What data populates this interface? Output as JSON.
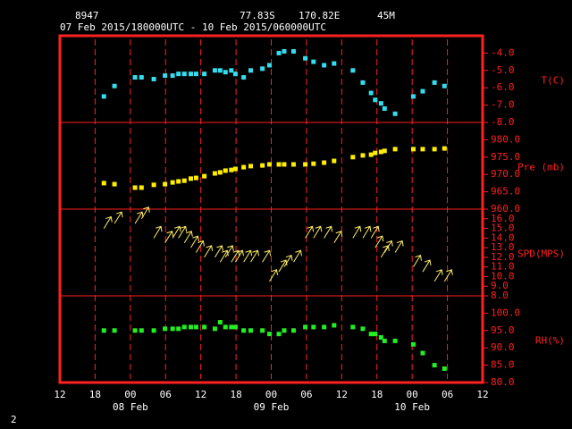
{
  "header": {
    "station": "8947",
    "lat": "77.83S",
    "lon": "170.82E",
    "elev": "45M",
    "period": "07 Feb 2015/180000UTC - 10 Feb 2015/060000UTC"
  },
  "page_number": "2",
  "chart_data": {
    "type": "meteogram",
    "xlim": [
      0,
      72
    ],
    "xticks": [
      {
        "value": 0,
        "label": "12"
      },
      {
        "value": 6,
        "label": "18"
      },
      {
        "value": 12,
        "label": "00"
      },
      {
        "value": 18,
        "label": "06"
      },
      {
        "value": 24,
        "label": "12"
      },
      {
        "value": 30,
        "label": "18"
      },
      {
        "value": 36,
        "label": "00"
      },
      {
        "value": 42,
        "label": "06"
      },
      {
        "value": 48,
        "label": "12"
      },
      {
        "value": 54,
        "label": "18"
      },
      {
        "value": 60,
        "label": "00"
      },
      {
        "value": 66,
        "label": "06"
      },
      {
        "value": 72,
        "label": "12"
      }
    ],
    "date_labels": [
      {
        "value": 12,
        "label": "08 Feb"
      },
      {
        "value": 36,
        "label": "09 Feb"
      },
      {
        "value": 60,
        "label": "10 Feb"
      }
    ],
    "x": [
      7.5,
      9.3,
      12.8,
      13.9,
      16.0,
      17.9,
      19.2,
      20.2,
      21.2,
      22.3,
      23.2,
      24.6,
      26.4,
      27.3,
      28.2,
      29.2,
      29.9,
      31.3,
      32.5,
      34.5,
      35.7,
      37.3,
      38.2,
      39.8,
      41.8,
      43.2,
      45.0,
      46.7,
      49.9,
      51.6,
      53.0,
      53.7,
      54.7,
      55.3,
      57.1,
      60.2,
      61.8,
      63.8,
      65.5
    ],
    "panels": [
      {
        "type": "scatter",
        "label": "T(C)",
        "color": "#33ddee",
        "ylim": [
          -8,
          -3
        ],
        "yticks": [
          {
            "value": -4,
            "label": "-4.0"
          },
          {
            "value": -5,
            "label": "-5.0"
          },
          {
            "value": -6,
            "label": "-6.0"
          },
          {
            "value": -7,
            "label": "-7.0"
          },
          {
            "value": -8,
            "label": "-8.0"
          }
        ],
        "values": [
          -6.5,
          -5.9,
          -5.4,
          -5.4,
          -5.5,
          -5.3,
          -5.3,
          -5.2,
          -5.2,
          -5.2,
          -5.2,
          -5.2,
          -5.0,
          -5.0,
          -5.1,
          -5.0,
          -5.2,
          -5.4,
          -5.0,
          -4.9,
          -4.7,
          -4.0,
          -3.9,
          -3.9,
          -4.3,
          -4.5,
          -4.7,
          -4.6,
          -5.0,
          -5.7,
          -6.3,
          -6.7,
          -6.9,
          -7.2,
          -7.5,
          -6.5,
          -6.2,
          -5.7,
          -5.9
        ]
      },
      {
        "type": "scatter",
        "label": "Pre (mb)",
        "color": "#ffee00",
        "ylim": [
          960,
          985
        ],
        "yticks": [
          {
            "value": 980,
            "label": "980.0"
          },
          {
            "value": 975,
            "label": "975.0"
          },
          {
            "value": 970,
            "label": "970.0"
          },
          {
            "value": 965,
            "label": "965.0"
          },
          {
            "value": 960,
            "label": "960.0"
          }
        ],
        "values": [
          967.5,
          967.2,
          966.2,
          966.2,
          967.0,
          967.2,
          967.7,
          968.0,
          968.2,
          968.8,
          969.0,
          969.5,
          970.3,
          970.6,
          971.1,
          971.3,
          971.6,
          972.1,
          972.4,
          972.6,
          972.9,
          972.9,
          972.9,
          972.9,
          972.9,
          973.1,
          973.4,
          973.9,
          975.0,
          975.5,
          975.7,
          976.2,
          976.5,
          976.8,
          977.3,
          977.3,
          977.3,
          977.3,
          977.5
        ]
      },
      {
        "type": "arrows",
        "label": "SPD(MPS)",
        "color": "#ffee66",
        "ylim": [
          8,
          17
        ],
        "yticks": [
          {
            "value": 16,
            "label": "16.0"
          },
          {
            "value": 15,
            "label": "15.0"
          },
          {
            "value": 14,
            "label": "14.0"
          },
          {
            "value": 13,
            "label": "13.0"
          },
          {
            "value": 12,
            "label": "12.0"
          },
          {
            "value": 11,
            "label": "11.0"
          },
          {
            "value": 10,
            "label": "10.0"
          },
          {
            "value": 9,
            "label": "9.0"
          },
          {
            "value": 8,
            "label": "8.0"
          }
        ],
        "values": [
          15,
          15.5,
          15.5,
          16,
          14,
          13.5,
          14,
          14,
          13.5,
          13,
          12.5,
          12,
          12,
          11.5,
          12,
          11.5,
          11.5,
          11.5,
          11.5,
          11.5,
          9.5,
          10.5,
          11,
          11.5,
          14,
          14,
          14,
          13.5,
          14,
          14,
          14,
          13,
          12,
          12.5,
          12.5,
          11,
          10.5,
          9.5,
          9.5
        ]
      },
      {
        "type": "scatter",
        "label": "RH(%)",
        "color": "#22ee22",
        "ylim": [
          80,
          105
        ],
        "yticks": [
          {
            "value": 100,
            "label": "100.0"
          },
          {
            "value": 95,
            "label": "95.0"
          },
          {
            "value": 90,
            "label": "90.0"
          },
          {
            "value": 85,
            "label": "85.0"
          },
          {
            "value": 80,
            "label": "80.0"
          }
        ],
        "values": [
          95,
          95,
          95,
          95,
          95,
          95.5,
          95.5,
          95.5,
          96,
          96,
          96,
          96,
          95.5,
          97.4,
          96,
          96,
          96,
          95,
          95,
          95,
          94,
          94,
          95,
          95,
          96,
          96,
          96,
          96.5,
          96,
          95.5,
          94,
          94,
          93,
          92,
          92,
          91,
          88.5,
          85,
          84
        ]
      }
    ]
  }
}
